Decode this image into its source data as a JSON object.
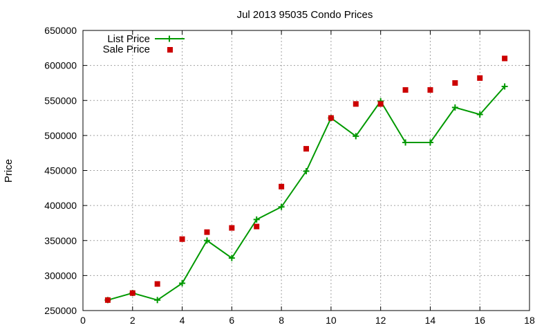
{
  "chart_data": {
    "type": "line",
    "title": "Jul 2013 95035 Condo Prices",
    "xlabel": "",
    "ylabel": "Price",
    "xlim": [
      0,
      18
    ],
    "ylim": [
      250000,
      650000
    ],
    "x_ticks": [
      0,
      2,
      4,
      6,
      8,
      10,
      12,
      14,
      16,
      18
    ],
    "y_ticks": [
      250000,
      300000,
      350000,
      400000,
      450000,
      500000,
      550000,
      600000,
      650000
    ],
    "grid": true,
    "legend_position": "top-left",
    "x": [
      1,
      2,
      3,
      4,
      5,
      6,
      7,
      8,
      9,
      10,
      11,
      12,
      13,
      14,
      15,
      16,
      17
    ],
    "series": [
      {
        "name": "List Price",
        "style": "line-with-plus-markers",
        "color": "#009900",
        "values": [
          265000,
          275000,
          265000,
          289000,
          350000,
          325000,
          380000,
          398000,
          449000,
          525000,
          499000,
          549000,
          490000,
          490000,
          540000,
          530000,
          570000
        ]
      },
      {
        "name": "Sale Price",
        "style": "square-markers",
        "color": "#cc0000",
        "values": [
          265000,
          275000,
          288000,
          352000,
          362000,
          368000,
          370000,
          427000,
          481000,
          525000,
          545000,
          545000,
          565000,
          565000,
          575000,
          582000,
          610000
        ]
      }
    ]
  }
}
